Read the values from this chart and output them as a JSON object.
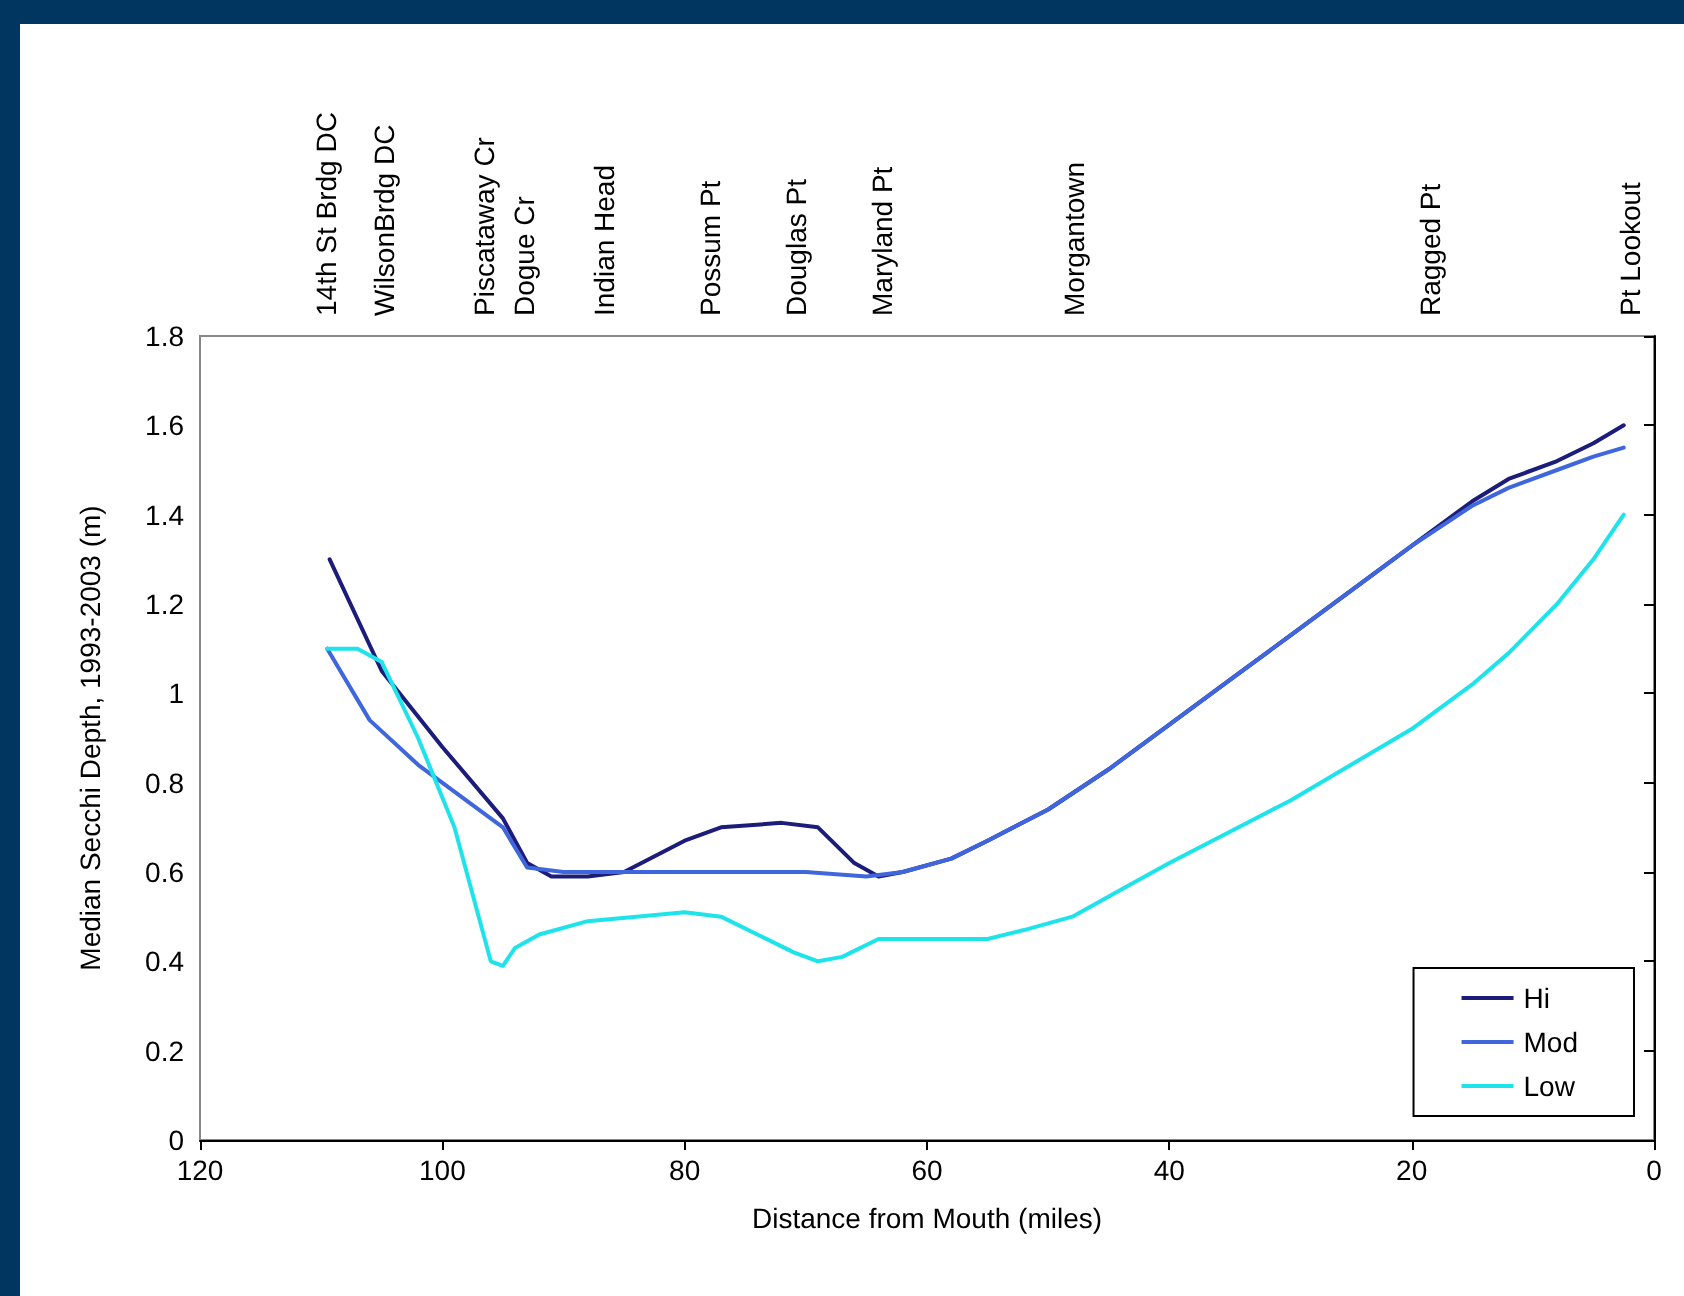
{
  "chart_data": {
    "type": "line",
    "xlabel": "Distance from Mouth (miles)",
    "ylabel": "Median Secchi Depth, 1993-2003 (m)",
    "xlim": [
      120,
      0
    ],
    "xticks": [
      120,
      100,
      80,
      60,
      40,
      20,
      0
    ],
    "ylim": [
      0,
      1.8
    ],
    "yticks": [
      0,
      0.2,
      0.4,
      0.6,
      0.8,
      1,
      1.2,
      1.4,
      1.6,
      1.8
    ],
    "annotations": [
      "14th St Brdg DC",
      "WilsonBrdg DC",
      "Piscataway Cr",
      "Dogue Cr",
      "Indian Head",
      "Possum Pt",
      "Douglas Pt",
      "Maryland Pt",
      "Morgantown",
      "Ragged Pt",
      "Pt Lookout"
    ],
    "grid": false,
    "legend": "bottom right",
    "marker": "none",
    "line_style": "solid",
    "series": [
      {
        "name": "Hi",
        "color": "#1c1c7a",
        "x": [
          109.3,
          105,
          100,
          95,
          93,
          91,
          88,
          85,
          80,
          77,
          72,
          69,
          66,
          64,
          62,
          58,
          55,
          50,
          45,
          40,
          35,
          30,
          25,
          20,
          15,
          12,
          8,
          5,
          2.5
        ],
        "values": [
          1.3,
          1.05,
          0.88,
          0.72,
          0.62,
          0.59,
          0.59,
          0.6,
          0.67,
          0.7,
          0.71,
          0.7,
          0.62,
          0.59,
          0.6,
          0.63,
          0.67,
          0.74,
          0.83,
          0.93,
          1.03,
          1.13,
          1.23,
          1.33,
          1.43,
          1.48,
          1.52,
          1.56,
          1.6
        ]
      },
      {
        "name": "Mod",
        "color": "#3f66dc",
        "x": [
          109.5,
          106,
          102,
          98,
          95,
          93,
          90,
          85,
          70,
          65,
          62,
          58,
          55,
          50,
          45,
          40,
          35,
          30,
          25,
          20,
          15,
          12,
          8,
          5,
          2.5
        ],
        "values": [
          1.1,
          0.94,
          0.84,
          0.76,
          0.7,
          0.61,
          0.6,
          0.6,
          0.6,
          0.59,
          0.6,
          0.63,
          0.67,
          0.74,
          0.83,
          0.93,
          1.03,
          1.13,
          1.23,
          1.33,
          1.42,
          1.46,
          1.5,
          1.53,
          1.55
        ]
      },
      {
        "name": "Low",
        "color": "#1ee3ea",
        "x": [
          109.5,
          107,
          105,
          102,
          99,
          97,
          96,
          95,
          94,
          92,
          88,
          84,
          80,
          77,
          74,
          71,
          69,
          67,
          64,
          60,
          55,
          52,
          48,
          44,
          40,
          35,
          30,
          25,
          20,
          15,
          12,
          8,
          5,
          2.5
        ],
        "values": [
          1.1,
          1.1,
          1.07,
          0.9,
          0.7,
          0.5,
          0.4,
          0.39,
          0.43,
          0.46,
          0.49,
          0.5,
          0.51,
          0.5,
          0.46,
          0.42,
          0.4,
          0.41,
          0.45,
          0.45,
          0.45,
          0.47,
          0.5,
          0.56,
          0.62,
          0.69,
          0.76,
          0.84,
          0.92,
          1.02,
          1.09,
          1.2,
          1.3,
          1.4
        ]
      }
    ]
  }
}
